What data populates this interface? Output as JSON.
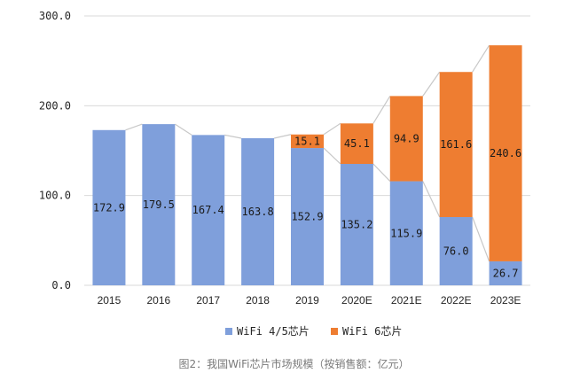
{
  "chart_data": {
    "type": "bar",
    "stacked": true,
    "categories": [
      "2015",
      "2016",
      "2017",
      "2018",
      "2019",
      "2020E",
      "2021E",
      "2022E",
      "2023E"
    ],
    "series": [
      {
        "name": "WiFi 4/5芯片",
        "color": "#7f9fdb",
        "values": [
          172.9,
          179.5,
          167.4,
          163.8,
          152.9,
          135.2,
          115.9,
          76.0,
          26.7
        ],
        "labels": [
          "172.9",
          "179.5",
          "167.4",
          "163.8",
          "152.9",
          "135.2",
          "115.9",
          "76.0",
          "26.7"
        ]
      },
      {
        "name": "WiFi 6芯片",
        "color": "#ee7d31",
        "values": [
          null,
          null,
          null,
          null,
          15.1,
          45.1,
          94.9,
          161.6,
          240.6
        ],
        "labels": [
          "",
          "",
          "",
          "",
          "15.1",
          "45.1",
          "94.9",
          "161.6",
          "240.6"
        ]
      }
    ],
    "yticks": [
      "0.0",
      "100.0",
      "200.0",
      "300.0"
    ],
    "ylim": [
      0,
      300
    ],
    "grid": true,
    "legend_position": "bottom",
    "connector_color": "#c8c8c8"
  },
  "caption": "图2：我国WiFi芯片市场规模（按销售额：亿元）"
}
